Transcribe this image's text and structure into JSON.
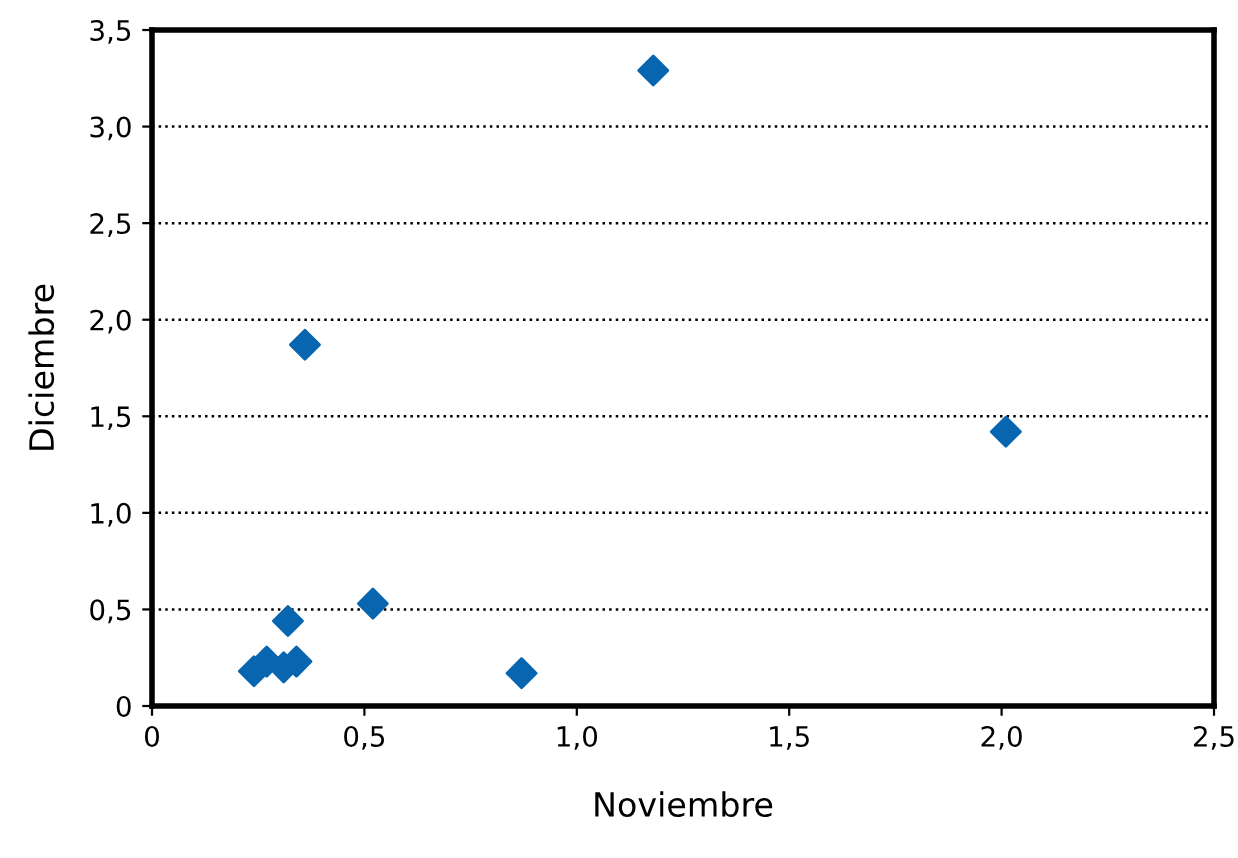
{
  "chart_data": {
    "type": "scatter",
    "xlabel": "Noviembre",
    "ylabel": "Diciembre",
    "x": [
      0.24,
      0.27,
      0.31,
      0.34,
      0.32,
      0.36,
      0.52,
      0.87,
      1.18,
      2.01
    ],
    "series": [
      {
        "color": "#0866b0",
        "values": [
          0.18,
          0.23,
          0.2,
          0.23,
          0.44,
          1.87,
          0.53,
          0.17,
          3.29,
          1.42
        ]
      }
    ],
    "xlim": [
      0,
      2.5
    ],
    "xticks": [
      {
        "value": 0,
        "label": "0"
      },
      {
        "value": 0.5,
        "label": "0,5"
      },
      {
        "value": 1,
        "label": "1,0"
      },
      {
        "value": 1.5,
        "label": "1,5"
      },
      {
        "value": 2,
        "label": "2,0"
      },
      {
        "value": 2.5,
        "label": "2,5"
      }
    ],
    "ylim": [
      0,
      3.5
    ],
    "yticks": [
      {
        "value": 0,
        "label": "0"
      },
      {
        "value": 0.5,
        "label": "0,5"
      },
      {
        "value": 1,
        "label": "1,0"
      },
      {
        "value": 1.5,
        "label": "1,5"
      },
      {
        "value": 2,
        "label": "2,0"
      },
      {
        "value": 2.5,
        "label": "2,5"
      },
      {
        "value": 3,
        "label": "3,0"
      },
      {
        "value": 3.5,
        "label": "3,5"
      }
    ],
    "grid": "y",
    "marker": "diamond",
    "legend": false
  }
}
